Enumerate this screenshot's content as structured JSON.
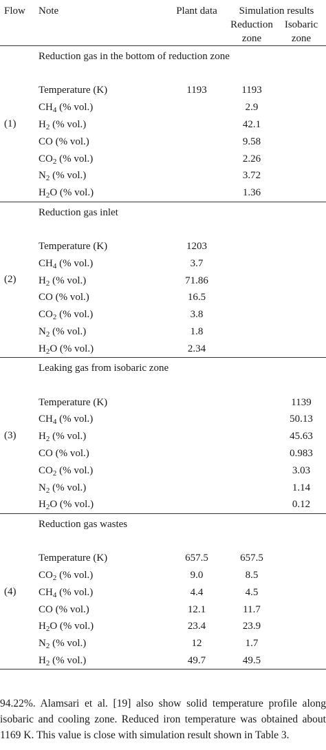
{
  "header": {
    "flow": "Flow",
    "note": "Note",
    "plant": "Plant data",
    "sim": "Simulation results",
    "reduction_zone": "Reduction zone",
    "isobaric_zone": "Isobaric zone"
  },
  "groups": [
    {
      "flow": "(1)",
      "caption": "Reduction gas in the bottom of reduction zone",
      "rows": [
        {
          "sp": "Temperature (K)",
          "plant": "1193",
          "red": "1193",
          "iso": ""
        },
        {
          "sp": "CH",
          "n": "4",
          "sfx": " (% vol.)",
          "plant": "",
          "red": "2.9",
          "iso": ""
        },
        {
          "sp": "H",
          "n": "2",
          "sfx": " (% vol.)",
          "plant": "",
          "red": "42.1",
          "iso": ""
        },
        {
          "sp": "CO (% vol.)",
          "plant": "",
          "red": "9.58",
          "iso": ""
        },
        {
          "sp": "CO",
          "n": "2",
          "sfx": " (% vol.)",
          "plant": "",
          "red": "2.26",
          "iso": ""
        },
        {
          "sp": "N",
          "n": "2",
          "sfx": " (% vol.)",
          "plant": "",
          "red": "3.72",
          "iso": ""
        },
        {
          "sp": "H",
          "n": "2",
          "sfx": "O (% vol.)",
          "plant": "",
          "red": "1.36",
          "iso": ""
        }
      ]
    },
    {
      "flow": "(2)",
      "caption": "Reduction gas inlet",
      "rows": [
        {
          "sp": "Temperature (K)",
          "plant": "1203",
          "red": "",
          "iso": ""
        },
        {
          "sp": "CH",
          "n": "4",
          "sfx": " (% vol.)",
          "plant": "3.7",
          "red": "",
          "iso": ""
        },
        {
          "sp": "H",
          "n": "2",
          "sfx": " (% vol.)",
          "plant": "71.86",
          "red": "",
          "iso": ""
        },
        {
          "sp": "CO (% vol.)",
          "plant": "16.5",
          "red": "",
          "iso": ""
        },
        {
          "sp": "CO",
          "n": "2",
          "sfx": " (% vol.)",
          "plant": "3.8",
          "red": "",
          "iso": ""
        },
        {
          "sp": "N",
          "n": "2",
          "sfx": " (% vol.)",
          "plant": "1.8",
          "red": "",
          "iso": ""
        },
        {
          "sp": "H",
          "n": "2",
          "sfx": "O (% vol.)",
          "plant": "2.34",
          "red": "",
          "iso": ""
        }
      ]
    },
    {
      "flow": "(3)",
      "caption": "Leaking gas from isobaric zone",
      "rows": [
        {
          "sp": "Temperature (K)",
          "plant": "",
          "red": "",
          "iso": "1139"
        },
        {
          "sp": "CH",
          "n": "4",
          "sfx": " (% vol.)",
          "plant": "",
          "red": "",
          "iso": "50.13"
        },
        {
          "sp": "H",
          "n": "2",
          "sfx": " (% vol.)",
          "plant": "",
          "red": "",
          "iso": "45.63"
        },
        {
          "sp": "CO (% vol.)",
          "plant": "",
          "red": "",
          "iso": "0.983"
        },
        {
          "sp": "CO",
          "n": "2",
          "sfx": " (% vol.)",
          "plant": "",
          "red": "",
          "iso": "3.03"
        },
        {
          "sp": "N",
          "n": "2",
          "sfx": " (% vol.)",
          "plant": "",
          "red": "",
          "iso": "1.14"
        },
        {
          "sp": "H",
          "n": "2",
          "sfx": "O (% vol.)",
          "plant": "",
          "red": "",
          "iso": "0.12"
        }
      ]
    },
    {
      "flow": "(4)",
      "caption": "Reduction gas wastes",
      "rows": [
        {
          "sp": "Temperature (K)",
          "plant": "657.5",
          "red": "657.5",
          "iso": ""
        },
        {
          "sp": "CO",
          "n": "2",
          "sfx": " (% vol.)",
          "plant": "9.0",
          "red": "8.5",
          "iso": ""
        },
        {
          "sp": "CH",
          "n": "4",
          "sfx": " (% vol.)",
          "plant": "4.4",
          "red": "4.5",
          "iso": ""
        },
        {
          "sp": "CO (% vol.)",
          "plant": "12.1",
          "red": "11.7",
          "iso": ""
        },
        {
          "sp": "H",
          "n": "2",
          "sfx": "O (% vol.)",
          "plant": "23.4",
          "red": "23.9",
          "iso": ""
        },
        {
          "sp": "N",
          "n": "2",
          "sfx": " (% vol.)",
          "plant": "12",
          "red": "1.7",
          "iso": ""
        },
        {
          "sp": "H",
          "n": "2",
          "sfx": " (% vol.)",
          "plant": "49.7",
          "red": "49.5",
          "iso": ""
        }
      ]
    }
  ],
  "paragraph": "94.22%. Alamsari et al. [19] also show solid temperature profile along isobaric and cooling zone. Reduced iron temperature was obtained about 1169 K. This value is close with simulation result shown in Table 3."
}
